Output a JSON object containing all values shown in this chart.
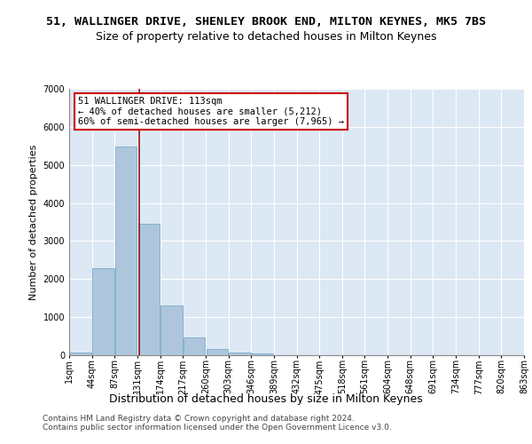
{
  "title": "51, WALLINGER DRIVE, SHENLEY BROOK END, MILTON KEYNES, MK5 7BS",
  "subtitle": "Size of property relative to detached houses in Milton Keynes",
  "xlabel": "Distribution of detached houses by size in Milton Keynes",
  "ylabel": "Number of detached properties",
  "bar_color": "#aec6dc",
  "bar_edge_color": "#7aaac8",
  "bg_color": "#dce8f4",
  "grid_color": "#ffffff",
  "annotation_line1": "51 WALLINGER DRIVE: 113sqm",
  "annotation_line2": "← 40% of detached houses are smaller (5,212)",
  "annotation_line3": "60% of semi-detached houses are larger (7,965) →",
  "vline_x": 2.57,
  "vline_color": "#8b1a1a",
  "annotation_box_edge": "#cc0000",
  "bar_values": [
    75,
    2280,
    5480,
    3450,
    1310,
    470,
    155,
    80,
    45,
    0,
    0,
    0,
    0,
    0,
    0,
    0,
    0,
    0,
    0,
    0
  ],
  "tick_labels": [
    "1sqm",
    "44sqm",
    "87sqm",
    "131sqm",
    "174sqm",
    "217sqm",
    "260sqm",
    "303sqm",
    "346sqm",
    "389sqm",
    "432sqm",
    "475sqm",
    "518sqm",
    "561sqm",
    "604sqm",
    "648sqm",
    "691sqm",
    "734sqm",
    "777sqm",
    "820sqm",
    "863sqm"
  ],
  "ylim": [
    0,
    7000
  ],
  "yticks": [
    0,
    1000,
    2000,
    3000,
    4000,
    5000,
    6000,
    7000
  ],
  "footer_line1": "Contains HM Land Registry data © Crown copyright and database right 2024.",
  "footer_line2": "Contains public sector information licensed under the Open Government Licence v3.0.",
  "title_fontsize": 9.5,
  "subtitle_fontsize": 9,
  "xlabel_fontsize": 9,
  "ylabel_fontsize": 8,
  "tick_fontsize": 7,
  "annotation_fontsize": 7.5,
  "footer_fontsize": 6.5
}
